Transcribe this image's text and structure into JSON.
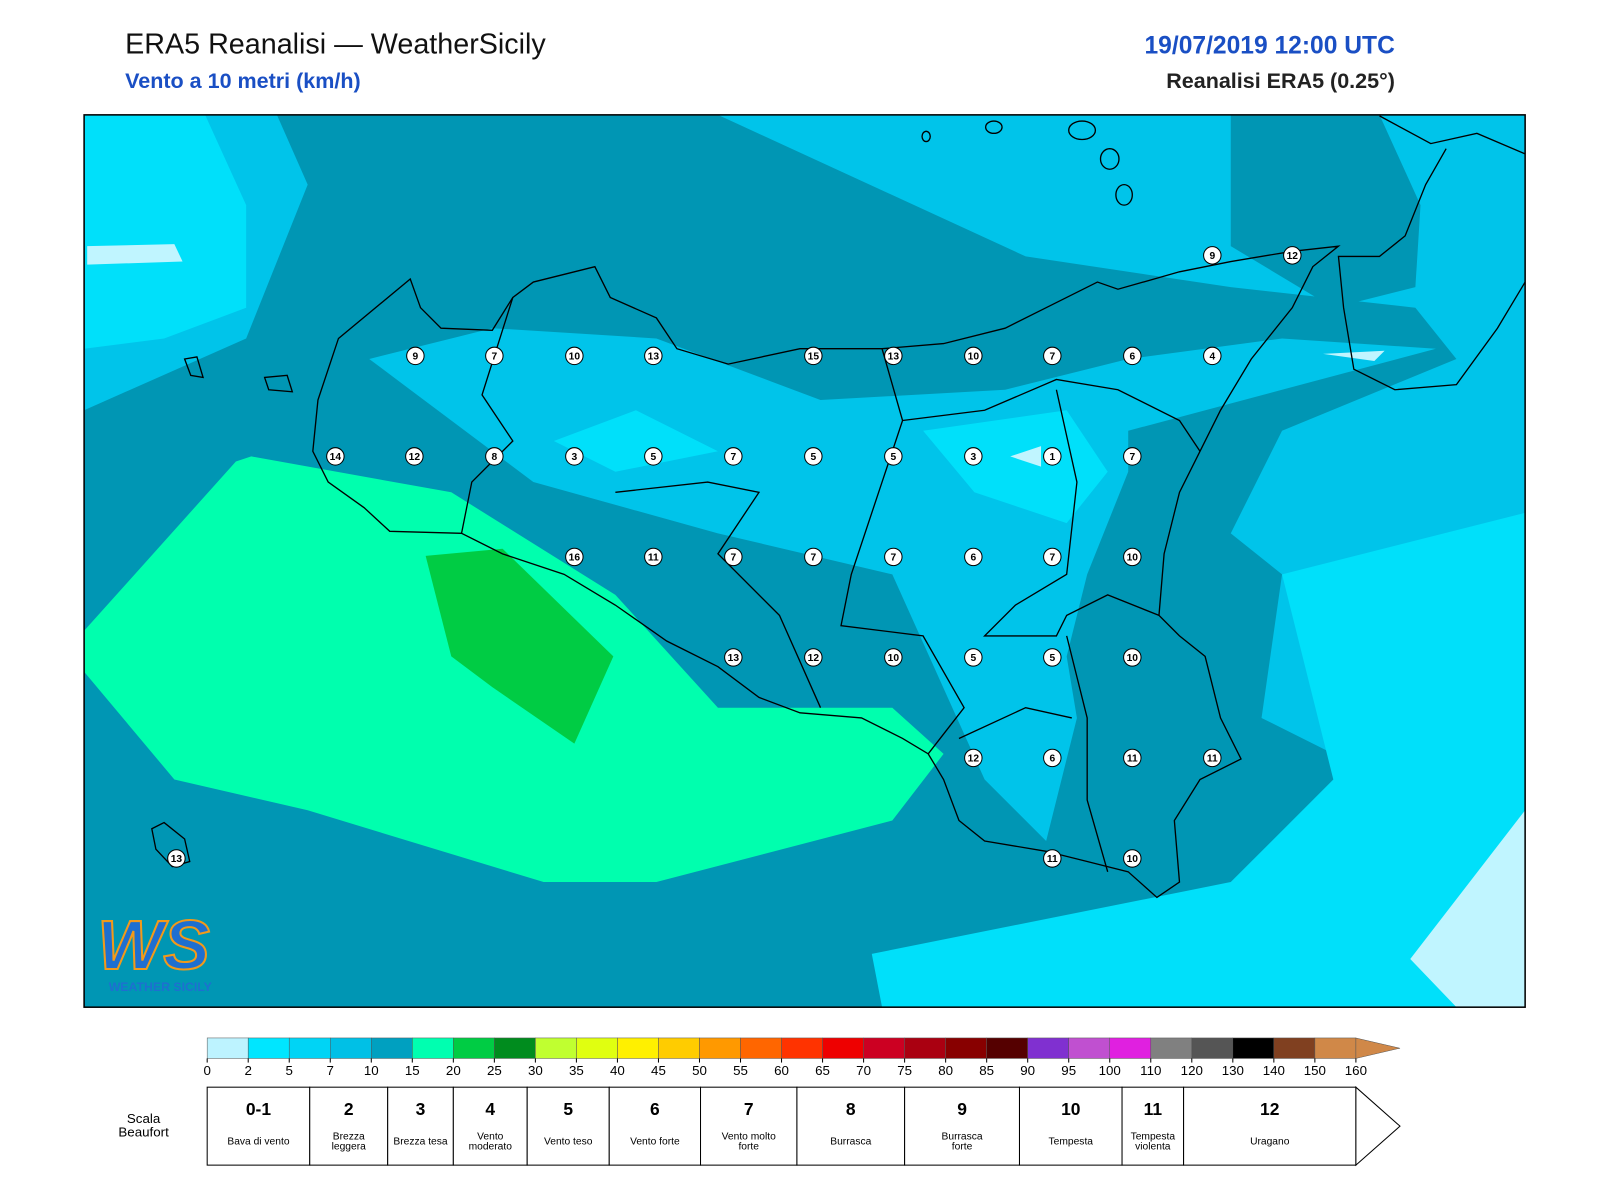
{
  "header": {
    "title": "ERA5 Reanalisi — WeatherSicily",
    "subtitle": "Vento a 10 metri (km/h)",
    "date": "19/07/2019 12:00 UTC",
    "source": "Reanalisi ERA5 (0.25°)"
  },
  "map": {
    "stations": [
      9,
      12,
      9,
      7,
      10,
      13,
      15,
      13,
      10,
      7,
      6,
      4,
      14,
      12,
      8,
      3,
      5,
      7,
      5,
      5,
      3,
      1,
      7,
      16,
      11,
      7,
      7,
      7,
      6,
      7,
      10,
      13,
      12,
      10,
      5,
      5,
      10,
      12,
      6,
      11,
      11,
      11,
      10,
      13
    ]
  },
  "logo": {
    "letters": "WS",
    "name": "WEATHER SICILY"
  },
  "legend": {
    "colors": [
      "#bdf3ff",
      "#00e6ff",
      "#00d4f5",
      "#00c0e6",
      "#00a0c0",
      "#00ffb0",
      "#00cc44",
      "#008c1e",
      "#c0ff30",
      "#e0ff10",
      "#fff000",
      "#ffcc00",
      "#ff9900",
      "#ff6600",
      "#ff3300",
      "#ee0000",
      "#cc0022",
      "#aa0011",
      "#880000",
      "#550000",
      "#8030d0",
      "#c050d0",
      "#e020e0",
      "#808080",
      "#555555",
      "#000000",
      "#804020",
      "#d08848"
    ],
    "ticks": [
      0,
      2,
      5,
      7,
      10,
      15,
      20,
      25,
      30,
      35,
      40,
      45,
      50,
      55,
      60,
      65,
      70,
      75,
      80,
      85,
      90,
      95,
      100,
      110,
      120,
      130,
      140,
      150,
      160
    ],
    "beaufort_label": "Scala Beaufort",
    "beaufort": [
      {
        "force": "0-1",
        "label": "Bava di vento"
      },
      {
        "force": 2,
        "label": "Brezza leggera"
      },
      {
        "force": 3,
        "label": "Brezza tesa"
      },
      {
        "force": 4,
        "label": "Vento moderato"
      },
      {
        "force": 5,
        "label": "Vento teso"
      },
      {
        "force": 6,
        "label": "Vento forte"
      },
      {
        "force": 7,
        "label": "Vento molto forte"
      },
      {
        "force": 8,
        "label": "Burrasca"
      },
      {
        "force": 9,
        "label": "Burrasca forte"
      },
      {
        "force": 10,
        "label": "Tempesta"
      },
      {
        "force": 11,
        "label": "Tempesta violenta"
      },
      {
        "force": 12,
        "label": "Uragano"
      }
    ]
  }
}
